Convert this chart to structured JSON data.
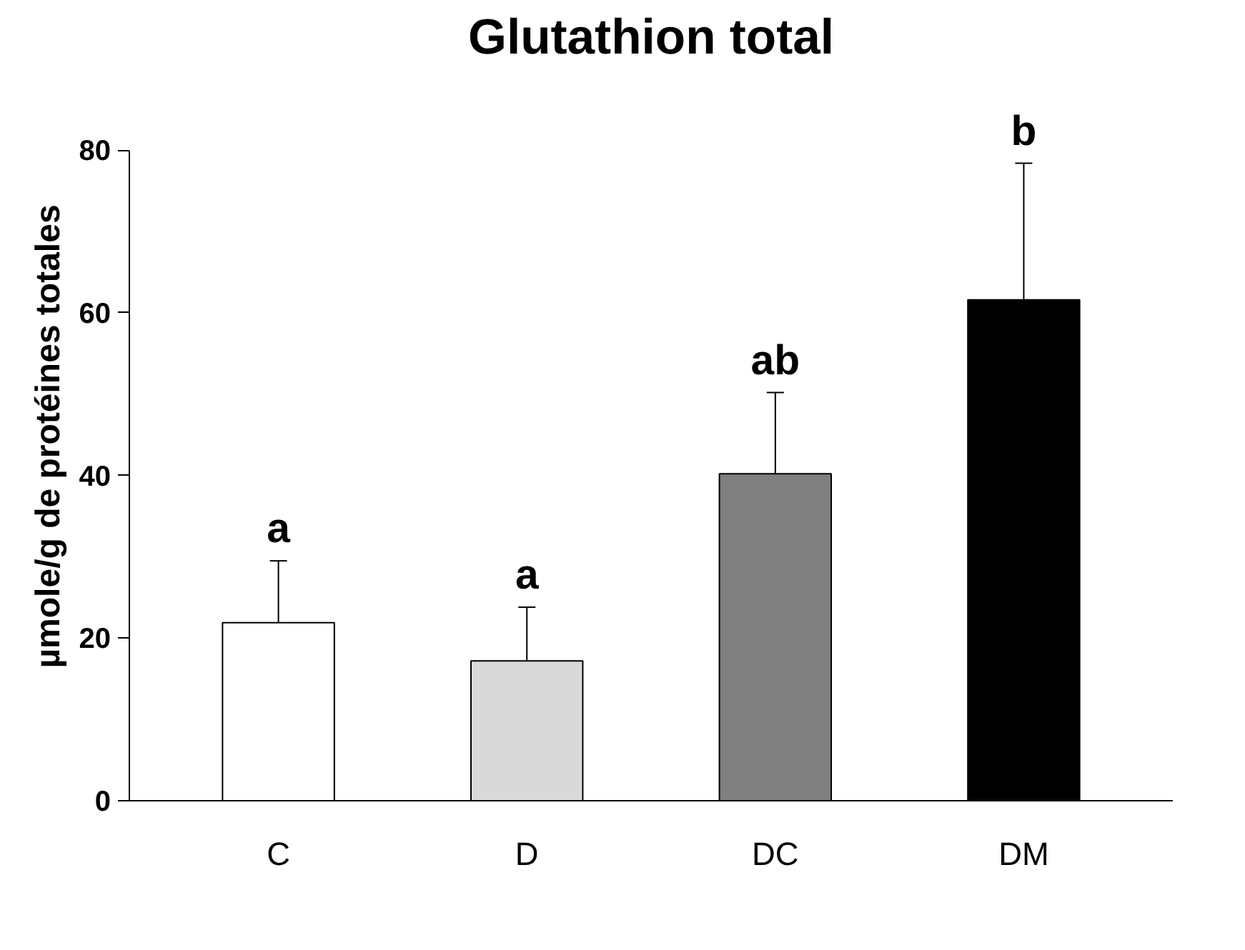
{
  "chart_data": {
    "type": "bar",
    "title": "Glutathion total",
    "ylabel": "µmole/g de protéines totales",
    "categories": [
      "C",
      "D",
      "DC",
      "DM"
    ],
    "values": [
      21.9,
      17.2,
      40.2,
      61.6
    ],
    "colors": [
      "#ffffff",
      "#d9d9d9",
      "#808080",
      "#000000"
    ],
    "errors": [
      7.6,
      6.6,
      10,
      16.8
    ],
    "ylim": [
      0,
      80
    ],
    "yticks": [
      0,
      20,
      40,
      60,
      80
    ],
    "grid": false,
    "annotations": [
      "a",
      "a",
      "ab",
      "b"
    ]
  }
}
